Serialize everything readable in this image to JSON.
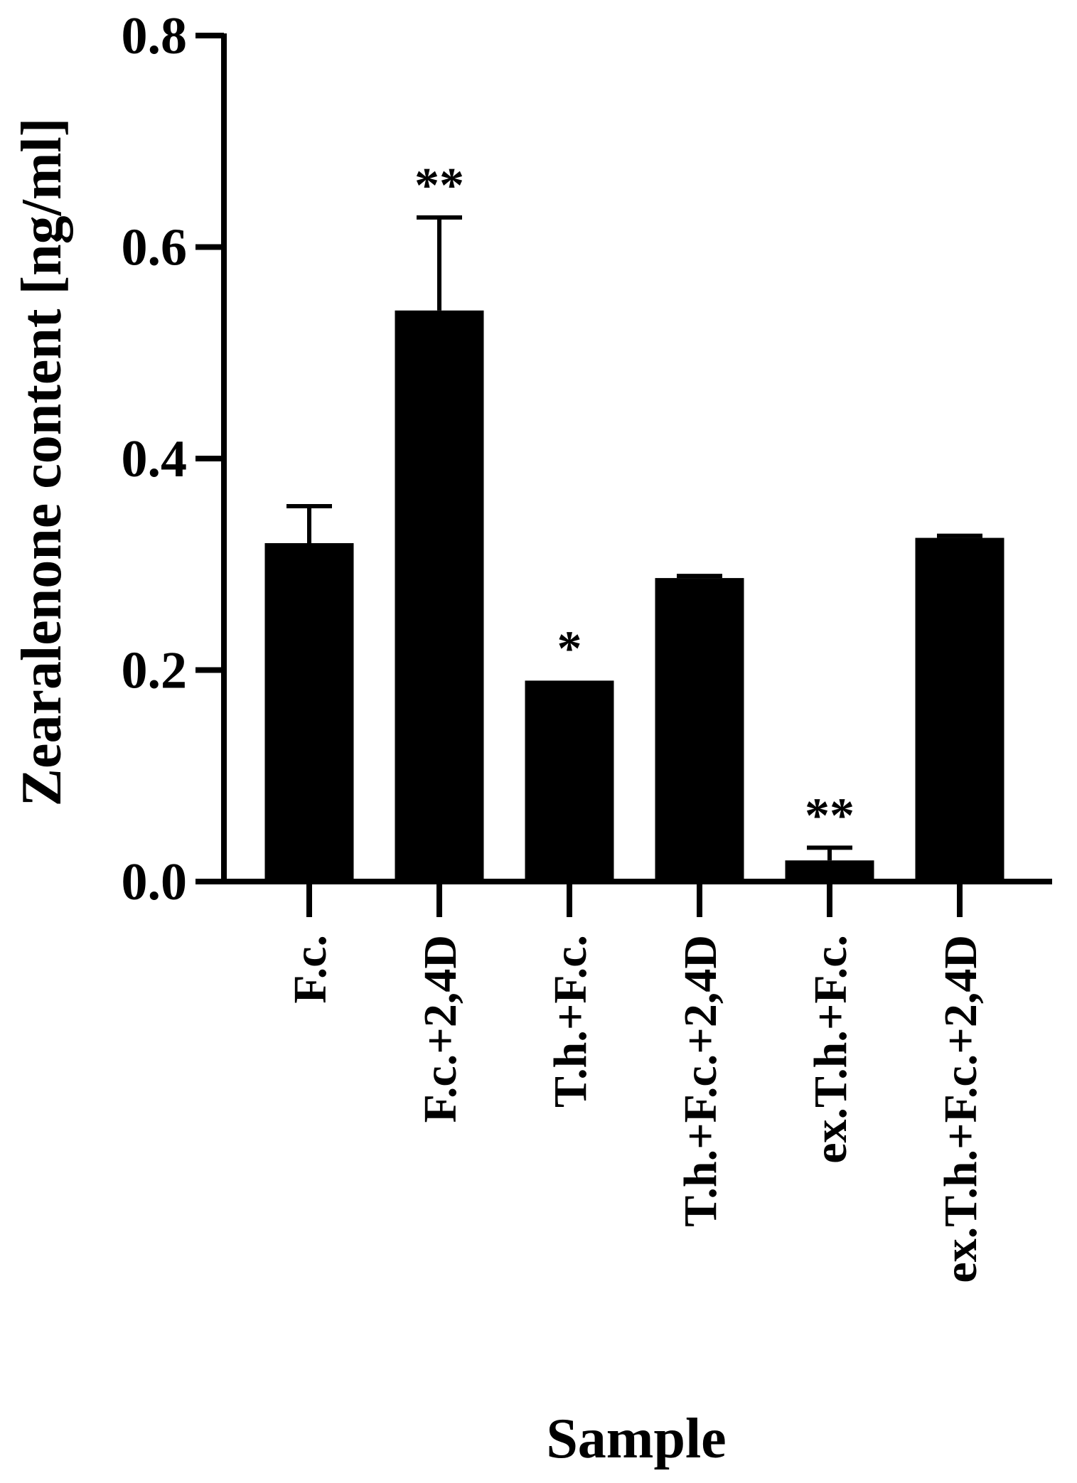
{
  "chart_data": {
    "type": "bar",
    "title": "",
    "xlabel": "Sample",
    "ylabel": "Zearalenone content [ng/ml]",
    "ylim": [
      0,
      0.8
    ],
    "yticks": [
      "0.0",
      "0.2",
      "0.4",
      "0.6",
      "0.8"
    ],
    "grid": false,
    "categories": [
      "F.c.",
      "F.c.+2,4D",
      "T.h.+F.c.",
      "T.h.+F.c.+2,4D",
      "ex.T.h.+F.c.",
      "ex.T.h.+F.c.+2,4D"
    ],
    "values": [
      0.32,
      0.54,
      0.19,
      0.287,
      0.02,
      0.325
    ],
    "errors": [
      0.035,
      0.088,
      0.0,
      0.002,
      0.012,
      0.002
    ],
    "significance": [
      "",
      "**",
      "*",
      "",
      "**",
      ""
    ],
    "bar_color": "#000000"
  }
}
